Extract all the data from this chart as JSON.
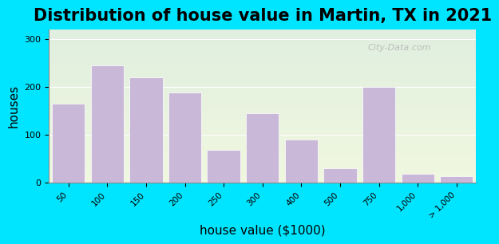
{
  "title": "Distribution of house value in Martin, TX in 2021",
  "xlabel": "house value ($1000)",
  "ylabel": "houses",
  "bar_labels": [
    "50",
    "100",
    "150",
    "200",
    "250",
    "300",
    "400",
    "500",
    "750",
    "1,000",
    "> 1,000"
  ],
  "bar_values": [
    165,
    245,
    220,
    188,
    68,
    145,
    90,
    30,
    200,
    18,
    14
  ],
  "bar_color": "#c9b8d8",
  "bar_edgecolor": "#ffffff",
  "ylim": [
    0,
    320
  ],
  "yticks": [
    0,
    100,
    200,
    300
  ],
  "bg_outer": "#00e5ff",
  "bg_inner_top": "#f0f7e8",
  "bg_inner_bottom": "#e0f5f5",
  "title_fontsize": 15,
  "axis_label_fontsize": 11,
  "watermark": "City-Data.com"
}
